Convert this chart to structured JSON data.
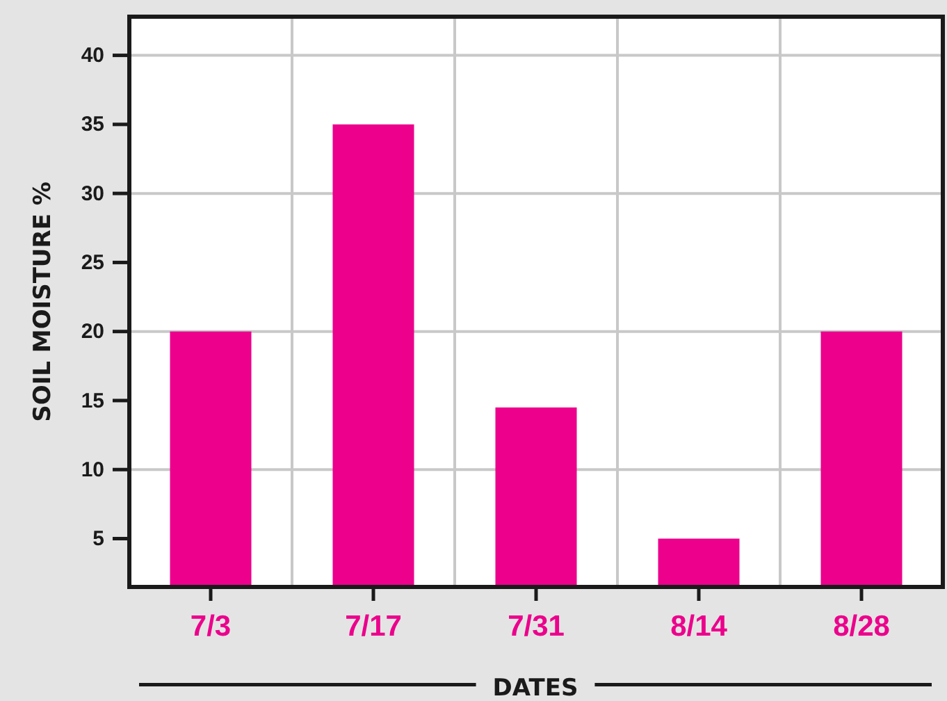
{
  "chart_data": {
    "type": "bar",
    "xlabel": "DATES",
    "ylabel": "SOIL MOISTURE %",
    "categories": [
      "7/3",
      "7/17",
      "7/31",
      "8/14",
      "8/28"
    ],
    "values": [
      20,
      35,
      14.5,
      5,
      20
    ],
    "color": "#ec008c",
    "ylim": [
      1.5,
      42.8
    ],
    "yticks": [
      5,
      10,
      15,
      20,
      25,
      30,
      35,
      40
    ],
    "grid": true
  }
}
